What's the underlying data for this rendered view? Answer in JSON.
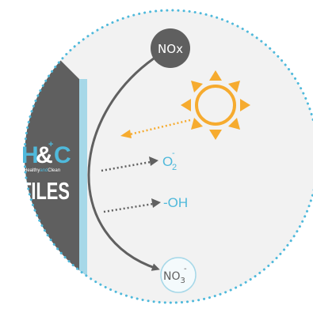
{
  "nodes": {
    "nox": "NOx",
    "no3_main": "NO",
    "no3_sub": "3",
    "no3_sup": "-",
    "o2_main": "O",
    "o2_sub": "2",
    "o2_sup": "-",
    "oh": "-OH"
  },
  "logo": {
    "h": "H",
    "amp": "&",
    "c": "C",
    "plus": "+",
    "tagline_1": "Healthy",
    "tagline_2": "and",
    "tagline_3": "Clean",
    "tiles": "TILES"
  },
  "icons": {
    "sun": "sun-icon"
  },
  "colors": {
    "circle_fill": "#f2f2f2",
    "circle_dot": "#4fb9db",
    "dark_gray": "#5f5f5f",
    "teal": "#4fb9db",
    "light_blue": "#a6d8e8",
    "sun_orange": "#f6ab2f",
    "arrow_gray": "#606060"
  }
}
